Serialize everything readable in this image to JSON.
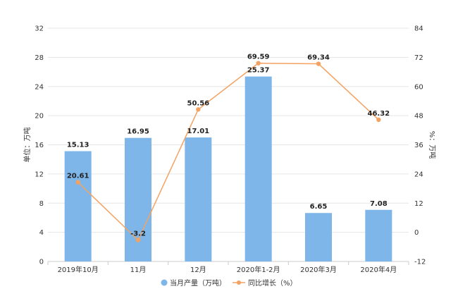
{
  "chart_data": {
    "type": "bar",
    "categories": [
      "2019年10月",
      "11月",
      "12月",
      "2020年1-2月",
      "2020年3月",
      "2020年4月"
    ],
    "series": [
      {
        "name": "当月产量（万吨）",
        "type": "bar",
        "axis": "left",
        "values": [
          15.13,
          16.95,
          17.01,
          25.37,
          6.65,
          7.08
        ],
        "color": "#7eb6e9"
      },
      {
        "name": "同比增长（%）",
        "type": "line",
        "axis": "right",
        "values": [
          20.61,
          -3.2,
          50.56,
          69.59,
          69.34,
          46.32
        ],
        "color": "#f3a262"
      }
    ],
    "left_axis": {
      "label": "单位：万吨",
      "ticks": [
        0,
        4,
        8,
        12,
        16,
        20,
        24,
        28,
        32
      ],
      "ylim": [
        0,
        32
      ]
    },
    "right_axis": {
      "label": "%：万吨",
      "ticks": [
        -12,
        0,
        12,
        24,
        36,
        48,
        60,
        72,
        84
      ],
      "ylim": [
        -12,
        84
      ]
    },
    "grid": true,
    "legend_position": "bottom-center"
  }
}
